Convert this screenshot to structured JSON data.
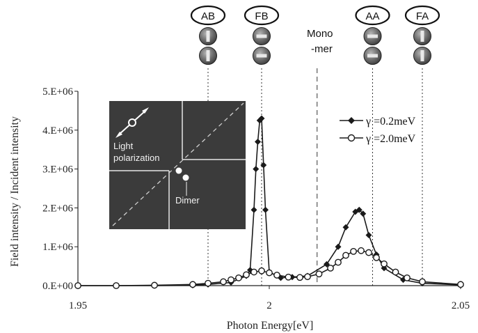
{
  "chart_data": {
    "type": "line",
    "xlabel": "Photon Energy[eV]",
    "ylabel": "Field intensity / Incident intensity",
    "xlim": [
      1.95,
      2.05
    ],
    "ylim": [
      0,
      5000000
    ],
    "x_ticks": [
      1.95,
      2,
      2.05
    ],
    "x_tick_labels": [
      "1.95",
      "2",
      "2.05"
    ],
    "y_ticks": [
      0,
      1000000,
      2000000,
      3000000,
      4000000,
      5000000
    ],
    "y_tick_labels": [
      "0.E+00",
      "1.E+06",
      "2.E+06",
      "3.E+06",
      "4.E+06",
      "5.E+06"
    ],
    "grid": false,
    "legend_position": "right",
    "series": [
      {
        "name": "γ =0.2meV",
        "marker": "filled-diamond",
        "color": "#1a1a1a",
        "points": [
          [
            1.95,
            0
          ],
          [
            1.96,
            0
          ],
          [
            1.97,
            0
          ],
          [
            1.98,
            10000
          ],
          [
            1.984,
            30000
          ],
          [
            1.99,
            80000
          ],
          [
            1.994,
            250000
          ],
          [
            1.995,
            400000
          ],
          [
            1.996,
            1950000
          ],
          [
            1.9965,
            3000000
          ],
          [
            1.997,
            3700000
          ],
          [
            1.9975,
            4250000
          ],
          [
            1.998,
            4300000
          ],
          [
            1.9985,
            3100000
          ],
          [
            1.999,
            1950000
          ],
          [
            2.0,
            350000
          ],
          [
            2.003,
            200000
          ],
          [
            2.006,
            220000
          ],
          [
            2.01,
            250000
          ],
          [
            2.015,
            550000
          ],
          [
            2.018,
            1000000
          ],
          [
            2.02,
            1500000
          ],
          [
            2.0225,
            1900000
          ],
          [
            2.0235,
            1950000
          ],
          [
            2.0245,
            1850000
          ],
          [
            2.026,
            1300000
          ],
          [
            2.028,
            800000
          ],
          [
            2.03,
            450000
          ],
          [
            2.035,
            150000
          ],
          [
            2.04,
            60000
          ],
          [
            2.05,
            20000
          ]
        ]
      },
      {
        "name": "γ =2.0meV",
        "marker": "open-circle",
        "color": "#1a1a1a",
        "points": [
          [
            1.95,
            0
          ],
          [
            1.96,
            0
          ],
          [
            1.97,
            10000
          ],
          [
            1.98,
            30000
          ],
          [
            1.984,
            60000
          ],
          [
            1.988,
            100000
          ],
          [
            1.99,
            150000
          ],
          [
            1.992,
            200000
          ],
          [
            1.994,
            280000
          ],
          [
            1.996,
            350000
          ],
          [
            1.998,
            380000
          ],
          [
            2.0,
            330000
          ],
          [
            2.002,
            270000
          ],
          [
            2.005,
            220000
          ],
          [
            2.008,
            210000
          ],
          [
            2.01,
            230000
          ],
          [
            2.013,
            300000
          ],
          [
            2.016,
            450000
          ],
          [
            2.018,
            600000
          ],
          [
            2.02,
            780000
          ],
          [
            2.022,
            880000
          ],
          [
            2.024,
            900000
          ],
          [
            2.026,
            850000
          ],
          [
            2.028,
            720000
          ],
          [
            2.03,
            560000
          ],
          [
            2.033,
            350000
          ],
          [
            2.036,
            200000
          ],
          [
            2.04,
            100000
          ],
          [
            2.05,
            30000
          ]
        ]
      }
    ],
    "reference_lines": [
      {
        "x": 1.984,
        "style": "dotted"
      },
      {
        "x": 1.998,
        "style": "dotted"
      },
      {
        "x": 2.0125,
        "style": "dashed"
      },
      {
        "x": 2.027,
        "style": "dotted"
      },
      {
        "x": 2.04,
        "style": "dotted"
      }
    ],
    "mode_labels": [
      {
        "text": "AB",
        "x": 1.984
      },
      {
        "text": "FB",
        "x": 1.998
      },
      {
        "text": "AA",
        "x": 2.027
      },
      {
        "text": "FA",
        "x": 2.04
      }
    ],
    "monomer_label": [
      "Mono",
      "-mer"
    ],
    "inset": {
      "labels": [
        "Light",
        "polarization",
        "Dimer"
      ]
    }
  }
}
